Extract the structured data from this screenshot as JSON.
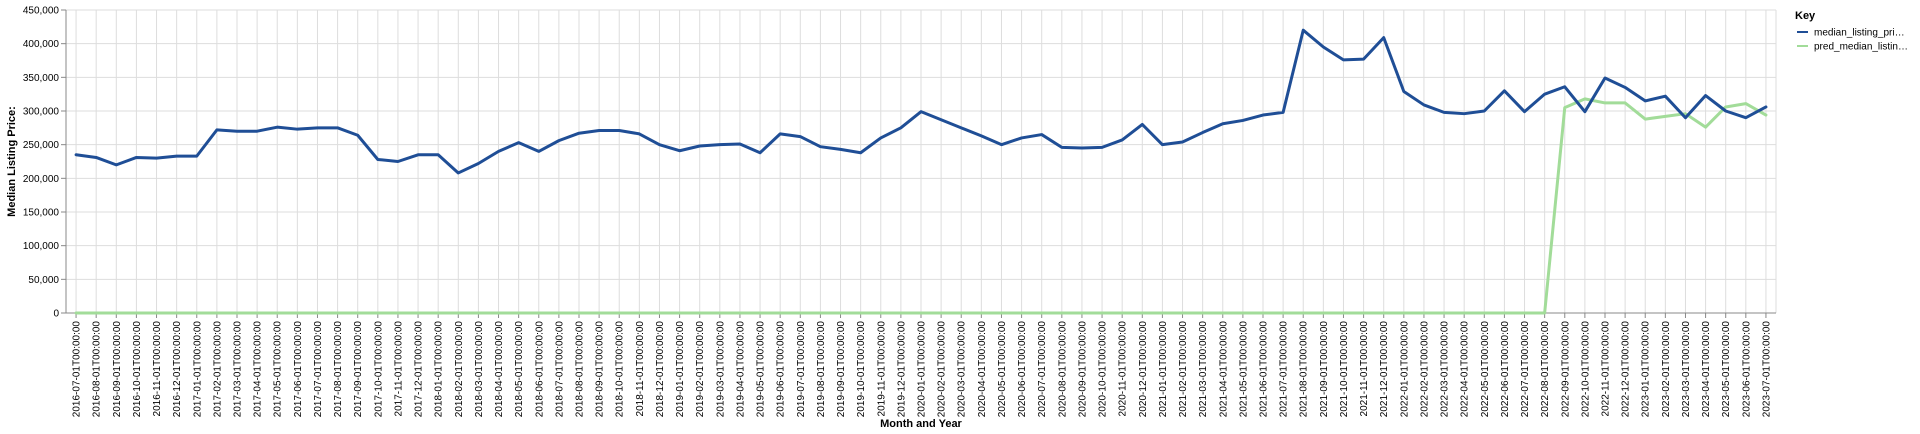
{
  "chart_data": {
    "type": "line",
    "xlabel": "Month and Year",
    "ylabel": "Median Listing Price:",
    "ylim": [
      0,
      450000
    ],
    "yticks": [
      0,
      50000,
      100000,
      150000,
      200000,
      250000,
      300000,
      350000,
      400000,
      450000
    ],
    "ytick_labels": [
      "0",
      "50,000",
      "100,000",
      "150,000",
      "200,000",
      "250,000",
      "300,000",
      "350,000",
      "400,000",
      "450,000"
    ],
    "grid": true,
    "legend": {
      "title": "Key",
      "placement": "top-right",
      "entries": [
        "median_listing_pri…",
        "pred_median_listin…"
      ]
    },
    "x": [
      "2016-07-01T00:00:00",
      "2016-08-01T00:00:00",
      "2016-09-01T00:00:00",
      "2016-10-01T00:00:00",
      "2016-11-01T00:00:00",
      "2016-12-01T00:00:00",
      "2017-01-01T00:00:00",
      "2017-02-01T00:00:00",
      "2017-03-01T00:00:00",
      "2017-04-01T00:00:00",
      "2017-05-01T00:00:00",
      "2017-06-01T00:00:00",
      "2017-07-01T00:00:00",
      "2017-08-01T00:00:00",
      "2017-09-01T00:00:00",
      "2017-10-01T00:00:00",
      "2017-11-01T00:00:00",
      "2017-12-01T00:00:00",
      "2018-01-01T00:00:00",
      "2018-02-01T00:00:00",
      "2018-03-01T00:00:00",
      "2018-04-01T00:00:00",
      "2018-05-01T00:00:00",
      "2018-06-01T00:00:00",
      "2018-07-01T00:00:00",
      "2018-08-01T00:00:00",
      "2018-09-01T00:00:00",
      "2018-10-01T00:00:00",
      "2018-11-01T00:00:00",
      "2018-12-01T00:00:00",
      "2019-01-01T00:00:00",
      "2019-02-01T00:00:00",
      "2019-03-01T00:00:00",
      "2019-04-01T00:00:00",
      "2019-05-01T00:00:00",
      "2019-06-01T00:00:00",
      "2019-07-01T00:00:00",
      "2019-08-01T00:00:00",
      "2019-09-01T00:00:00",
      "2019-10-01T00:00:00",
      "2019-11-01T00:00:00",
      "2019-12-01T00:00:00",
      "2020-01-01T00:00:00",
      "2020-02-01T00:00:00",
      "2020-03-01T00:00:00",
      "2020-04-01T00:00:00",
      "2020-05-01T00:00:00",
      "2020-06-01T00:00:00",
      "2020-07-01T00:00:00",
      "2020-08-01T00:00:00",
      "2020-09-01T00:00:00",
      "2020-10-01T00:00:00",
      "2020-11-01T00:00:00",
      "2020-12-01T00:00:00",
      "2021-01-01T00:00:00",
      "2021-02-01T00:00:00",
      "2021-03-01T00:00:00",
      "2021-04-01T00:00:00",
      "2021-05-01T00:00:00",
      "2021-06-01T00:00:00",
      "2021-07-01T00:00:00",
      "2021-08-01T00:00:00",
      "2021-09-01T00:00:00",
      "2021-10-01T00:00:00",
      "2021-11-01T00:00:00",
      "2021-12-01T00:00:00",
      "2022-01-01T00:00:00",
      "2022-02-01T00:00:00",
      "2022-03-01T00:00:00",
      "2022-04-01T00:00:00",
      "2022-05-01T00:00:00",
      "2022-06-01T00:00:00",
      "2022-07-01T00:00:00",
      "2022-08-01T00:00:00",
      "2022-09-01T00:00:00",
      "2022-10-01T00:00:00",
      "2022-11-01T00:00:00",
      "2022-12-01T00:00:00",
      "2023-01-01T00:00:00",
      "2023-02-01T00:00:00",
      "2023-03-01T00:00:00",
      "2023-04-01T00:00:00",
      "2023-05-01T00:00:00",
      "2023-06-01T00:00:00",
      "2023-07-01T00:00:00"
    ],
    "series": [
      {
        "name": "median_listing_pri…",
        "color": "#1f4e96",
        "values": [
          235000,
          231000,
          220000,
          231000,
          230000,
          233000,
          233000,
          272000,
          270000,
          270000,
          276000,
          273000,
          275000,
          275000,
          264000,
          228000,
          225000,
          235000,
          235000,
          208000,
          222000,
          240000,
          253000,
          240000,
          256000,
          267000,
          271000,
          271000,
          266000,
          250000,
          241000,
          248000,
          250000,
          251000,
          238000,
          266000,
          262000,
          247000,
          243000,
          238000,
          260000,
          275000,
          299000,
          287000,
          275000,
          263000,
          250000,
          260000,
          265000,
          246000,
          245000,
          246000,
          257000,
          280000,
          250000,
          254000,
          268000,
          281000,
          286000,
          294000,
          298000,
          420000,
          395000,
          376000,
          377000,
          409000,
          329000,
          309000,
          298000,
          296000,
          300000,
          330000,
          299000,
          325000,
          336000,
          299000,
          349000,
          335000,
          315000,
          322000,
          290000,
          323000,
          300000,
          290000,
          306000
        ]
      },
      {
        "name": "pred_median_listin…",
        "color": "#a2dc99",
        "values": [
          0,
          0,
          0,
          0,
          0,
          0,
          0,
          0,
          0,
          0,
          0,
          0,
          0,
          0,
          0,
          0,
          0,
          0,
          0,
          0,
          0,
          0,
          0,
          0,
          0,
          0,
          0,
          0,
          0,
          0,
          0,
          0,
          0,
          0,
          0,
          0,
          0,
          0,
          0,
          0,
          0,
          0,
          0,
          0,
          0,
          0,
          0,
          0,
          0,
          0,
          0,
          0,
          0,
          0,
          0,
          0,
          0,
          0,
          0,
          0,
          0,
          0,
          0,
          0,
          0,
          0,
          0,
          0,
          0,
          0,
          0,
          0,
          0,
          0,
          305000,
          318000,
          312000,
          312000,
          288000,
          292000,
          296000,
          276000,
          306000,
          311000,
          294000
        ]
      }
    ]
  }
}
